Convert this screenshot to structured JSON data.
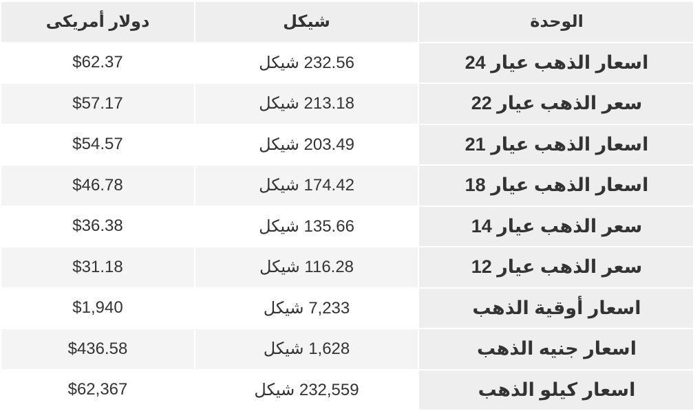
{
  "table": {
    "headers": [
      "الوحدة",
      "شيكل",
      "دولار أمريكى"
    ],
    "rows": [
      {
        "unit": "اسعار الذهب عيار 24",
        "shekel": "232.56 شيكل",
        "usd": "$62.37"
      },
      {
        "unit": "سعر الذهب عيار 22",
        "shekel": "213.18 شيكل",
        "usd": "$57.17"
      },
      {
        "unit": "اسعار الذهب عيار 21",
        "shekel": "203.49 شيكل",
        "usd": "$54.57"
      },
      {
        "unit": "اسعار الذهب عيار 18",
        "shekel": "174.42 شيكل",
        "usd": "$46.78"
      },
      {
        "unit": "سعر الذهب عيار 14",
        "shekel": "135.66 شيكل",
        "usd": "$36.38"
      },
      {
        "unit": "سعر الذهب عيار 12",
        "shekel": "116.28 شيكل",
        "usd": "$31.18"
      },
      {
        "unit": "اسعار أوقية الذهب",
        "shekel": "7,233 شيكل",
        "usd": "$1,940"
      },
      {
        "unit": "اسعار جنيه الذهب",
        "shekel": "1,628 شيكل",
        "usd": "$436.58"
      },
      {
        "unit": "اسعار كيلو الذهب",
        "shekel": "232,559 شيكل",
        "usd": "$62,367"
      }
    ]
  }
}
